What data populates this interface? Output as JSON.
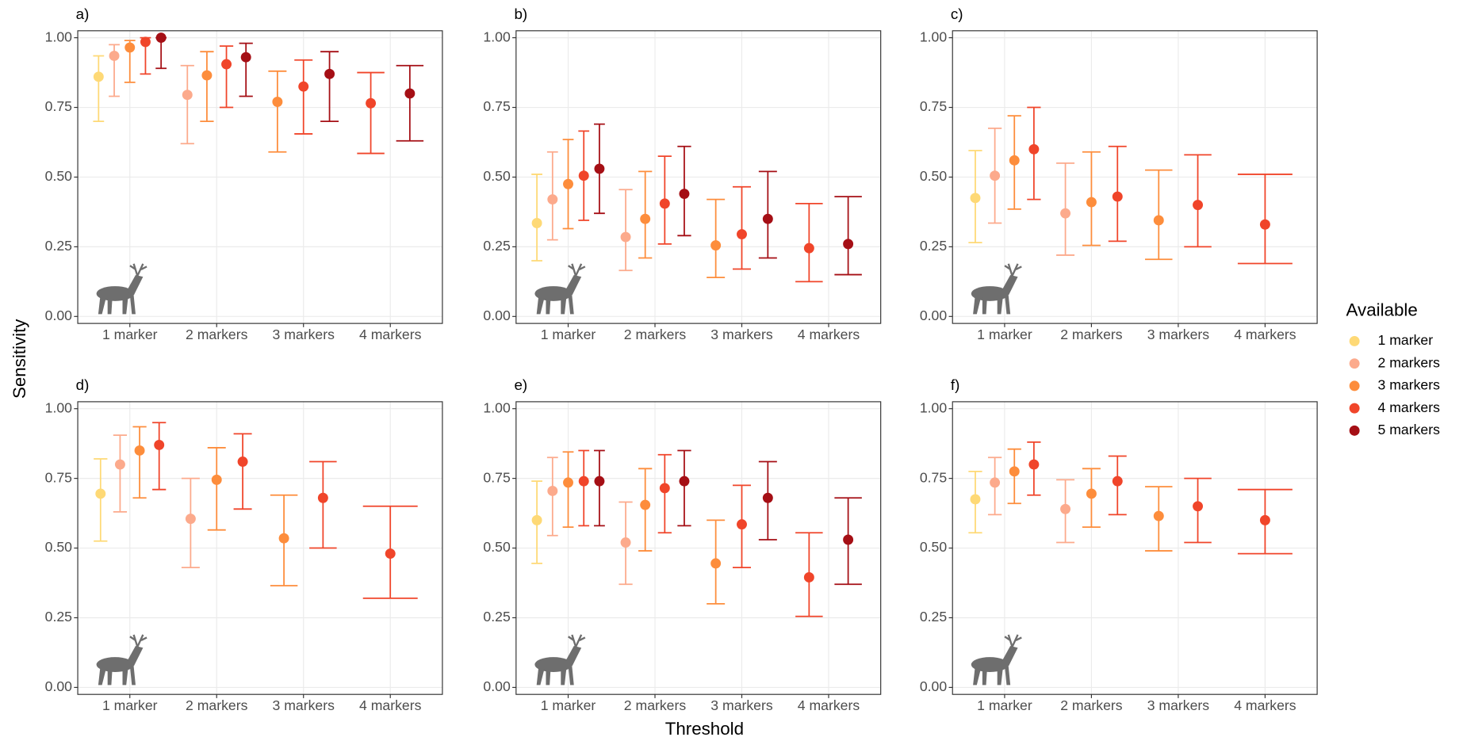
{
  "xlabel": "Threshold",
  "ylabel": "Sensitivity",
  "legend": {
    "title": "Available"
  },
  "chart_data": [
    {
      "type": "errorbar",
      "label": "a)",
      "categories": [
        "1 marker",
        "2 markers",
        "3 markers",
        "4 markers"
      ],
      "ylim": [
        -0.025,
        1.025
      ],
      "yticks": [
        {
          "value": 0,
          "label": "0.00"
        },
        {
          "value": 0.25,
          "label": "0.25"
        },
        {
          "value": 0.5,
          "label": "0.50"
        },
        {
          "value": 0.75,
          "label": "0.75"
        },
        {
          "value": 1,
          "label": "1.00"
        }
      ],
      "grid": true,
      "series": [
        {
          "name": "1 marker",
          "color": "#FED976",
          "values": [
            0.86,
            null,
            null,
            null
          ],
          "lower": [
            0.7,
            null,
            null,
            null
          ],
          "upper": [
            0.935,
            null,
            null,
            null
          ]
        },
        {
          "name": "2 markers",
          "color": "#FCAA8C",
          "values": [
            0.935,
            0.795,
            null,
            null
          ],
          "lower": [
            0.79,
            0.62,
            null,
            null
          ],
          "upper": [
            0.975,
            0.9,
            null,
            null
          ]
        },
        {
          "name": "3 markers",
          "color": "#FD8D3C",
          "values": [
            0.965,
            0.865,
            0.77,
            null
          ],
          "lower": [
            0.84,
            0.7,
            0.59,
            null
          ],
          "upper": [
            0.99,
            0.95,
            0.88,
            null
          ]
        },
        {
          "name": "4 markers",
          "color": "#F0452A",
          "values": [
            0.985,
            0.905,
            0.825,
            0.765
          ],
          "lower": [
            0.87,
            0.75,
            0.655,
            0.585
          ],
          "upper": [
            1.0,
            0.97,
            0.92,
            0.875
          ]
        },
        {
          "name": "5 markers",
          "color": "#A50F15",
          "values": [
            1.0,
            0.93,
            0.87,
            0.8
          ],
          "lower": [
            0.89,
            0.79,
            0.7,
            0.63
          ],
          "upper": [
            1.0,
            0.98,
            0.95,
            0.9
          ]
        }
      ]
    },
    {
      "type": "errorbar",
      "label": "b)",
      "categories": [
        "1 marker",
        "2 markers",
        "3 markers",
        "4 markers"
      ],
      "ylim": [
        -0.025,
        1.025
      ],
      "yticks": [
        {
          "value": 0,
          "label": "0.00"
        },
        {
          "value": 0.25,
          "label": "0.25"
        },
        {
          "value": 0.5,
          "label": "0.50"
        },
        {
          "value": 0.75,
          "label": "0.75"
        },
        {
          "value": 1,
          "label": "1.00"
        }
      ],
      "grid": true,
      "series": [
        {
          "name": "1 marker",
          "color": "#FED976",
          "values": [
            0.335,
            null,
            null,
            null
          ],
          "lower": [
            0.2,
            null,
            null,
            null
          ],
          "upper": [
            0.51,
            null,
            null,
            null
          ]
        },
        {
          "name": "2 markers",
          "color": "#FCAA8C",
          "values": [
            0.42,
            0.285,
            null,
            null
          ],
          "lower": [
            0.275,
            0.165,
            null,
            null
          ],
          "upper": [
            0.59,
            0.455,
            null,
            null
          ]
        },
        {
          "name": "3 markers",
          "color": "#FD8D3C",
          "values": [
            0.475,
            0.35,
            0.255,
            null
          ],
          "lower": [
            0.315,
            0.21,
            0.14,
            null
          ],
          "upper": [
            0.635,
            0.52,
            0.42,
            null
          ]
        },
        {
          "name": "4 markers",
          "color": "#F0452A",
          "values": [
            0.505,
            0.405,
            0.295,
            0.245
          ],
          "lower": [
            0.345,
            0.26,
            0.17,
            0.125
          ],
          "upper": [
            0.665,
            0.575,
            0.465,
            0.405
          ]
        },
        {
          "name": "5 markers",
          "color": "#A50F15",
          "values": [
            0.53,
            0.44,
            0.35,
            0.26
          ],
          "lower": [
            0.37,
            0.29,
            0.21,
            0.15
          ],
          "upper": [
            0.69,
            0.61,
            0.52,
            0.43
          ]
        }
      ]
    },
    {
      "type": "errorbar",
      "label": "c)",
      "categories": [
        "1 marker",
        "2 markers",
        "3 markers",
        "4 markers"
      ],
      "ylim": [
        -0.025,
        1.025
      ],
      "yticks": [
        {
          "value": 0,
          "label": "0.00"
        },
        {
          "value": 0.25,
          "label": "0.25"
        },
        {
          "value": 0.5,
          "label": "0.50"
        },
        {
          "value": 0.75,
          "label": "0.75"
        },
        {
          "value": 1,
          "label": "1.00"
        }
      ],
      "grid": true,
      "series": [
        {
          "name": "1 marker",
          "color": "#FED976",
          "values": [
            0.425,
            null,
            null,
            null
          ],
          "lower": [
            0.265,
            null,
            null,
            null
          ],
          "upper": [
            0.595,
            null,
            null,
            null
          ]
        },
        {
          "name": "2 markers",
          "color": "#FCAA8C",
          "values": [
            0.505,
            0.37,
            null,
            null
          ],
          "lower": [
            0.335,
            0.22,
            null,
            null
          ],
          "upper": [
            0.675,
            0.55,
            null,
            null
          ]
        },
        {
          "name": "3 markers",
          "color": "#FD8D3C",
          "values": [
            0.56,
            0.41,
            0.345,
            null
          ],
          "lower": [
            0.385,
            0.255,
            0.205,
            null
          ],
          "upper": [
            0.72,
            0.59,
            0.525,
            null
          ]
        },
        {
          "name": "4 markers",
          "color": "#F0452A",
          "values": [
            0.6,
            0.43,
            0.4,
            0.33
          ],
          "lower": [
            0.42,
            0.27,
            0.25,
            0.19
          ],
          "upper": [
            0.75,
            0.61,
            0.58,
            0.51
          ]
        }
      ]
    },
    {
      "type": "errorbar",
      "label": "d)",
      "categories": [
        "1 marker",
        "2 markers",
        "3 markers",
        "4 markers"
      ],
      "ylim": [
        -0.025,
        1.025
      ],
      "yticks": [
        {
          "value": 0,
          "label": "0.00"
        },
        {
          "value": 0.25,
          "label": "0.25"
        },
        {
          "value": 0.5,
          "label": "0.50"
        },
        {
          "value": 0.75,
          "label": "0.75"
        },
        {
          "value": 1,
          "label": "1.00"
        }
      ],
      "grid": true,
      "series": [
        {
          "name": "1 marker",
          "color": "#FED976",
          "values": [
            0.695,
            null,
            null,
            null
          ],
          "lower": [
            0.525,
            null,
            null,
            null
          ],
          "upper": [
            0.82,
            null,
            null,
            null
          ]
        },
        {
          "name": "2 markers",
          "color": "#FCAA8C",
          "values": [
            0.8,
            0.605,
            null,
            null
          ],
          "lower": [
            0.63,
            0.43,
            null,
            null
          ],
          "upper": [
            0.905,
            0.75,
            null,
            null
          ]
        },
        {
          "name": "3 markers",
          "color": "#FD8D3C",
          "values": [
            0.85,
            0.745,
            0.535,
            null
          ],
          "lower": [
            0.68,
            0.565,
            0.365,
            null
          ],
          "upper": [
            0.935,
            0.86,
            0.69,
            null
          ]
        },
        {
          "name": "4 markers",
          "color": "#F0452A",
          "values": [
            0.87,
            0.81,
            0.68,
            0.48
          ],
          "lower": [
            0.71,
            0.64,
            0.5,
            0.32
          ],
          "upper": [
            0.95,
            0.91,
            0.81,
            0.65
          ]
        }
      ]
    },
    {
      "type": "errorbar",
      "label": "e)",
      "categories": [
        "1 marker",
        "2 markers",
        "3 markers",
        "4 markers"
      ],
      "ylim": [
        -0.025,
        1.025
      ],
      "yticks": [
        {
          "value": 0,
          "label": "0.00"
        },
        {
          "value": 0.25,
          "label": "0.25"
        },
        {
          "value": 0.5,
          "label": "0.50"
        },
        {
          "value": 0.75,
          "label": "0.75"
        },
        {
          "value": 1,
          "label": "1.00"
        }
      ],
      "grid": true,
      "series": [
        {
          "name": "1 marker",
          "color": "#FED976",
          "values": [
            0.6,
            null,
            null,
            null
          ],
          "lower": [
            0.445,
            null,
            null,
            null
          ],
          "upper": [
            0.74,
            null,
            null,
            null
          ]
        },
        {
          "name": "2 markers",
          "color": "#FCAA8C",
          "values": [
            0.705,
            0.52,
            null,
            null
          ],
          "lower": [
            0.545,
            0.37,
            null,
            null
          ],
          "upper": [
            0.825,
            0.665,
            null,
            null
          ]
        },
        {
          "name": "3 markers",
          "color": "#FD8D3C",
          "values": [
            0.735,
            0.655,
            0.445,
            null
          ],
          "lower": [
            0.575,
            0.49,
            0.3,
            null
          ],
          "upper": [
            0.845,
            0.785,
            0.6,
            null
          ]
        },
        {
          "name": "4 markers",
          "color": "#F0452A",
          "values": [
            0.74,
            0.715,
            0.585,
            0.395
          ],
          "lower": [
            0.58,
            0.555,
            0.43,
            0.255
          ],
          "upper": [
            0.85,
            0.835,
            0.725,
            0.555
          ]
        },
        {
          "name": "5 markers",
          "color": "#A50F15",
          "values": [
            0.74,
            0.74,
            0.68,
            0.53
          ],
          "lower": [
            0.58,
            0.58,
            0.53,
            0.37
          ],
          "upper": [
            0.85,
            0.85,
            0.81,
            0.68
          ]
        }
      ]
    },
    {
      "type": "errorbar",
      "label": "f)",
      "categories": [
        "1 marker",
        "2 markers",
        "3 markers",
        "4 markers"
      ],
      "ylim": [
        -0.025,
        1.025
      ],
      "yticks": [
        {
          "value": 0,
          "label": "0.00"
        },
        {
          "value": 0.25,
          "label": "0.25"
        },
        {
          "value": 0.5,
          "label": "0.50"
        },
        {
          "value": 0.75,
          "label": "0.75"
        },
        {
          "value": 1,
          "label": "1.00"
        }
      ],
      "grid": true,
      "series": [
        {
          "name": "1 marker",
          "color": "#FED976",
          "values": [
            0.675,
            null,
            null,
            null
          ],
          "lower": [
            0.555,
            null,
            null,
            null
          ],
          "upper": [
            0.775,
            null,
            null,
            null
          ]
        },
        {
          "name": "2 markers",
          "color": "#FCAA8C",
          "values": [
            0.735,
            0.64,
            null,
            null
          ],
          "lower": [
            0.62,
            0.52,
            null,
            null
          ],
          "upper": [
            0.825,
            0.745,
            null,
            null
          ]
        },
        {
          "name": "3 markers",
          "color": "#FD8D3C",
          "values": [
            0.775,
            0.695,
            0.615,
            null
          ],
          "lower": [
            0.66,
            0.575,
            0.49,
            null
          ],
          "upper": [
            0.855,
            0.785,
            0.72,
            null
          ]
        },
        {
          "name": "4 markers",
          "color": "#F0452A",
          "values": [
            0.8,
            0.74,
            0.65,
            0.6
          ],
          "lower": [
            0.69,
            0.62,
            0.52,
            0.48
          ],
          "upper": [
            0.88,
            0.83,
            0.75,
            0.71
          ]
        }
      ]
    }
  ]
}
